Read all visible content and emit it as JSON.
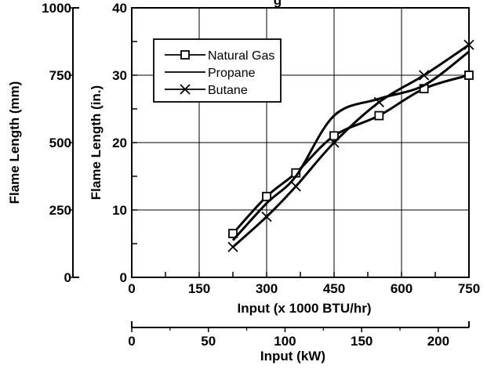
{
  "chart_data": {
    "type": "line",
    "title": "",
    "title_partial_visible": "g",
    "xlabel": "Input (x 1000 BTU/hr)",
    "x2label": "Input (kW)",
    "ylabel": "Flame Length (in.)",
    "y2label": "Flame Length (mm)",
    "xlim": [
      0,
      750
    ],
    "ylim": [
      0,
      40
    ],
    "x2lim": [
      0,
      220
    ],
    "y2lim": [
      0,
      1000
    ],
    "x_ticks": [
      0,
      150,
      300,
      450,
      600,
      750
    ],
    "y_ticks": [
      0,
      10,
      20,
      30,
      40
    ],
    "x2_ticks": [
      0,
      50,
      100,
      150,
      200
    ],
    "y2_ticks": [
      0,
      250,
      500,
      750,
      1000
    ],
    "grid": true,
    "legend_position": "top-left",
    "series": [
      {
        "name": "Natural Gas",
        "marker": "square",
        "x": [
          225,
          300,
          365,
          450,
          550,
          650,
          750
        ],
        "y": [
          6.5,
          12,
          15.5,
          21,
          24,
          28,
          30
        ]
      },
      {
        "name": "Propane",
        "marker": "none",
        "x": [
          225,
          300,
          365,
          450,
          550,
          650,
          750
        ],
        "y": [
          5.5,
          11,
          15,
          24,
          26.5,
          28.5,
          33.5
        ]
      },
      {
        "name": "Butane",
        "marker": "x",
        "x": [
          225,
          300,
          365,
          450,
          550,
          650,
          750
        ],
        "y": [
          4.5,
          9,
          13.5,
          20,
          26,
          30,
          34.5
        ]
      }
    ]
  }
}
